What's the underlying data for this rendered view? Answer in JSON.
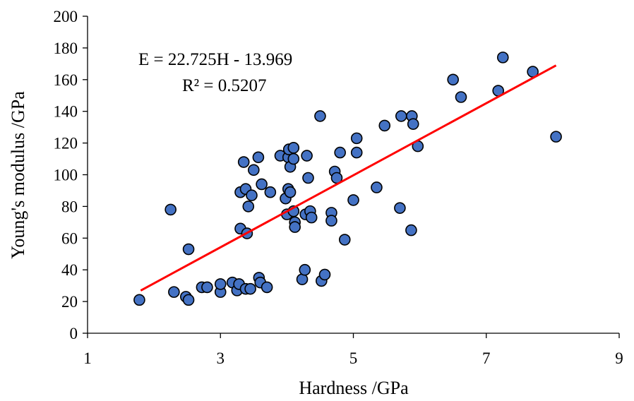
{
  "chart_data": {
    "type": "scatter",
    "xlabel": "Hardness /GPa",
    "ylabel": "Young's modulus /GPa",
    "xlim": [
      1,
      9
    ],
    "ylim": [
      0,
      200
    ],
    "x_ticks": [
      1,
      3,
      5,
      7,
      9
    ],
    "y_ticks": [
      0,
      20,
      40,
      60,
      80,
      100,
      120,
      140,
      160,
      180,
      200
    ],
    "x_tick_labels": [
      "1",
      "3",
      "5",
      "7",
      "9"
    ],
    "y_tick_labels": [
      "0",
      "20",
      "40",
      "60",
      "80",
      "100",
      "120",
      "140",
      "160",
      "180",
      "200"
    ],
    "grid": false,
    "marker_color": "#4472C4",
    "trendline_color": "#FF0000",
    "equation_text": "E = 22.725H - 13.969",
    "r2_text": "R² = 0.5207",
    "trendline": {
      "slope": 22.725,
      "intercept": -13.969,
      "x_start": 1.8,
      "x_end": 8.05
    },
    "points": [
      [
        1.78,
        21
      ],
      [
        2.25,
        78
      ],
      [
        2.3,
        26
      ],
      [
        2.48,
        23
      ],
      [
        2.52,
        21
      ],
      [
        2.52,
        53
      ],
      [
        2.72,
        29
      ],
      [
        2.8,
        29
      ],
      [
        3.0,
        26
      ],
      [
        3.0,
        31
      ],
      [
        3.18,
        32
      ],
      [
        3.25,
        27
      ],
      [
        3.28,
        31
      ],
      [
        3.3,
        66
      ],
      [
        3.3,
        89
      ],
      [
        3.35,
        108
      ],
      [
        3.38,
        91
      ],
      [
        3.38,
        28
      ],
      [
        3.4,
        63
      ],
      [
        3.42,
        80
      ],
      [
        3.45,
        28
      ],
      [
        3.47,
        87
      ],
      [
        3.5,
        103
      ],
      [
        3.57,
        111
      ],
      [
        3.58,
        35
      ],
      [
        3.6,
        32
      ],
      [
        3.62,
        94
      ],
      [
        3.7,
        29
      ],
      [
        3.75,
        89
      ],
      [
        3.9,
        112
      ],
      [
        3.98,
        85
      ],
      [
        4.0,
        75
      ],
      [
        4.02,
        91
      ],
      [
        4.02,
        111
      ],
      [
        4.03,
        116
      ],
      [
        4.05,
        89
      ],
      [
        4.05,
        105
      ],
      [
        4.1,
        110
      ],
      [
        4.1,
        117
      ],
      [
        4.1,
        77
      ],
      [
        4.12,
        70
      ],
      [
        4.12,
        67
      ],
      [
        4.23,
        34
      ],
      [
        4.27,
        40
      ],
      [
        4.28,
        75
      ],
      [
        4.3,
        112
      ],
      [
        4.32,
        98
      ],
      [
        4.35,
        77
      ],
      [
        4.37,
        73
      ],
      [
        4.5,
        137
      ],
      [
        4.52,
        33
      ],
      [
        4.57,
        37
      ],
      [
        4.67,
        76
      ],
      [
        4.67,
        71
      ],
      [
        4.72,
        102
      ],
      [
        4.75,
        98
      ],
      [
        4.8,
        114
      ],
      [
        4.87,
        59
      ],
      [
        5.0,
        84
      ],
      [
        5.05,
        114
      ],
      [
        5.05,
        123
      ],
      [
        5.35,
        92
      ],
      [
        5.47,
        131
      ],
      [
        5.7,
        79
      ],
      [
        5.72,
        137
      ],
      [
        5.87,
        65
      ],
      [
        5.88,
        137
      ],
      [
        5.9,
        132
      ],
      [
        5.97,
        118
      ],
      [
        6.5,
        160
      ],
      [
        6.62,
        149
      ],
      [
        7.18,
        153
      ],
      [
        7.25,
        174
      ],
      [
        7.7,
        165
      ],
      [
        8.05,
        124
      ]
    ]
  }
}
